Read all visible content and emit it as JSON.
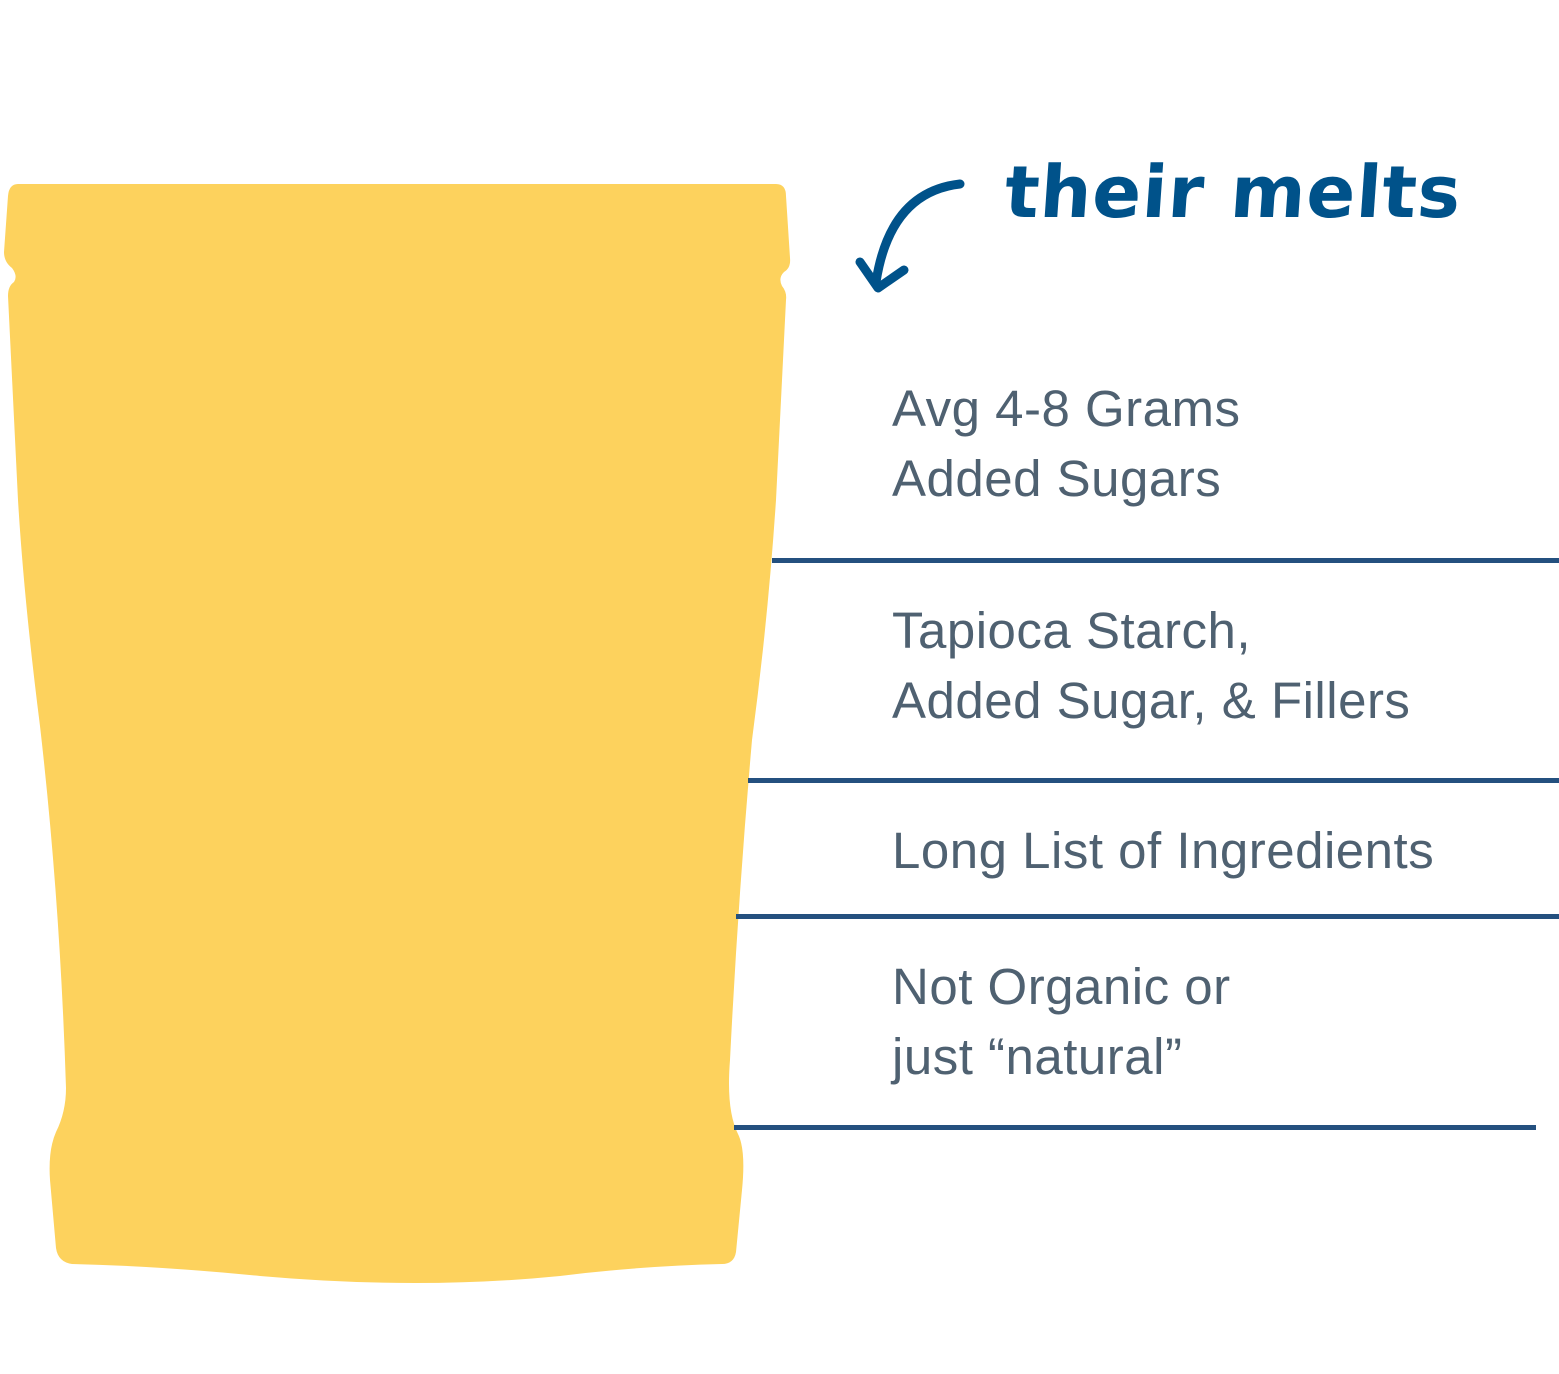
{
  "colors": {
    "pouch": "#fdd25d",
    "accent": "#00528a",
    "text": "#4f6171",
    "rule": "#24507f"
  },
  "annotation": {
    "text": "their melts",
    "icon": "curved-arrow-down-left-icon"
  },
  "features": [
    {
      "line1": "Avg 4-8 Grams",
      "line2": "Added Sugars"
    },
    {
      "line1": "Tapioca Starch,",
      "line2": "Added Sugar, & Fillers"
    },
    {
      "line1": "Long List of Ingredients",
      "line2": ""
    },
    {
      "line1": "Not Organic or",
      "line2": "just “natural”"
    }
  ]
}
